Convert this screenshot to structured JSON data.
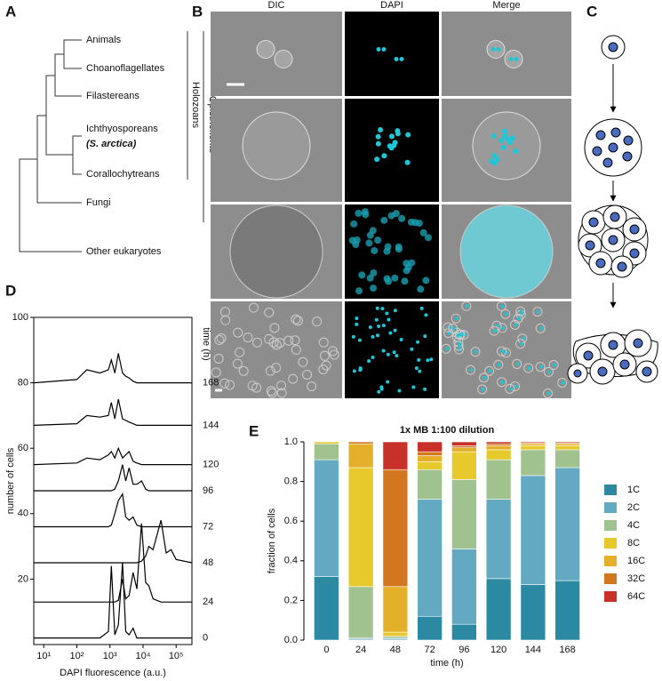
{
  "panel_labels": [
    "A",
    "B",
    "C",
    "D",
    "E"
  ],
  "tree": {
    "taxa": [
      "Animals",
      "Choanoflagellates",
      "Filastereans",
      "Ichthyosporeans",
      "(S. arctica)",
      "Corallochytreans",
      "Fungi",
      "Other eukaryotes"
    ],
    "clades": [
      "Holozoans",
      "Opisthokonts"
    ]
  },
  "microscopy": {
    "columns": [
      "DIC",
      "DAPI",
      "Merge"
    ]
  },
  "chart_data": [
    {
      "type": "line",
      "xlabel": "DAPI fluorescence (a.u.)",
      "ylabel": "number of cells",
      "legend_title": "time (h)",
      "xscale": "log",
      "xlim": [
        5,
        300000
      ],
      "xticks": [
        {
          "value": 10,
          "label": "10¹"
        },
        {
          "value": 100,
          "label": "10²"
        },
        {
          "value": 1000,
          "label": "10³"
        },
        {
          "value": 10000,
          "label": "10⁴"
        },
        {
          "value": 100000,
          "label": "10⁵"
        }
      ],
      "ylim": [
        0,
        100
      ],
      "yticks": [
        20,
        40,
        60,
        80,
        100
      ],
      "x": [
        5,
        100,
        200,
        500,
        900,
        1100,
        1400,
        1800,
        2400,
        3000,
        3800,
        5000,
        6500,
        9000,
        12000,
        15000,
        20000,
        35000,
        50000,
        70000,
        100000,
        300000
      ],
      "series": [
        {
          "name": "0",
          "color": "#000000",
          "values": [
            2,
            2,
            2,
            2,
            4,
            24,
            3,
            6,
            25,
            4,
            3,
            5,
            2,
            2,
            2,
            2,
            2,
            2,
            2,
            2,
            2,
            2
          ]
        },
        {
          "name": "24",
          "color": "#000000",
          "values": [
            13,
            13,
            13,
            13,
            13,
            13,
            13,
            13.5,
            20,
            14,
            15,
            22,
            17,
            37,
            19,
            18,
            14,
            13,
            13,
            13,
            13,
            13
          ]
        },
        {
          "name": "48",
          "color": "#000000",
          "values": [
            25,
            25,
            25,
            25,
            25,
            25,
            25,
            25,
            25,
            25,
            25,
            25,
            25,
            25.5,
            27,
            30,
            29,
            38,
            28,
            29,
            26,
            25
          ]
        },
        {
          "name": "72",
          "color": "#000000",
          "values": [
            36,
            36,
            36,
            36,
            36,
            36.5,
            40,
            44,
            46,
            39,
            38,
            39,
            36.5,
            36,
            36,
            36,
            36,
            36,
            36,
            36,
            36,
            36
          ]
        },
        {
          "name": "96",
          "color": "#000000",
          "values": [
            47,
            47,
            47,
            47,
            47,
            47,
            47.5,
            50,
            55,
            50,
            54,
            49,
            49,
            50,
            47.5,
            47,
            47,
            47,
            47,
            47,
            47,
            47
          ]
        },
        {
          "name": "120",
          "color": "#000000",
          "values": [
            55,
            55.5,
            57,
            56.5,
            58,
            59,
            57,
            60,
            57,
            58,
            59,
            56,
            55.5,
            55,
            55,
            55,
            55,
            55,
            55,
            55,
            55,
            55
          ]
        },
        {
          "name": "144",
          "color": "#000000",
          "values": [
            67,
            67.5,
            70,
            69.5,
            70,
            74,
            69,
            75,
            69,
            68.5,
            68,
            67.5,
            67,
            67,
            67,
            67,
            67,
            67,
            67,
            67,
            67,
            67
          ]
        },
        {
          "name": "168",
          "color": "#000000",
          "values": [
            80,
            81,
            84,
            83,
            84,
            87,
            83,
            89,
            83,
            82,
            81.5,
            80.5,
            80,
            80,
            80,
            80,
            80,
            80,
            80,
            80,
            80,
            80
          ]
        }
      ]
    },
    {
      "type": "stacked_bar",
      "title": "1x MB 1:100 dilution",
      "xlabel": "time (h)",
      "ylabel": "fraction of cells",
      "categories": [
        "0",
        "24",
        "48",
        "72",
        "96",
        "120",
        "144",
        "168"
      ],
      "ylim": [
        0,
        1
      ],
      "yticks": [
        {
          "value": 0,
          "label": "0.0"
        },
        0.2,
        0.4,
        0.6,
        0.8,
        {
          "value": 1,
          "label": "1.0"
        }
      ],
      "legend": "right",
      "series": [
        {
          "name": "1C",
          "color": "#2b8aa2",
          "values": [
            0.32,
            0.005,
            0.005,
            0.12,
            0.08,
            0.31,
            0.28,
            0.3
          ]
        },
        {
          "name": "2C",
          "color": "#62a9c1",
          "values": [
            0.59,
            0.005,
            0.005,
            0.59,
            0.38,
            0.4,
            0.55,
            0.57
          ]
        },
        {
          "name": "4C",
          "color": "#a0c28f",
          "values": [
            0.08,
            0.26,
            0.01,
            0.15,
            0.35,
            0.2,
            0.13,
            0.09
          ]
        },
        {
          "name": "8C",
          "color": "#e8c92c",
          "values": [
            0.01,
            0.6,
            0.02,
            0.04,
            0.14,
            0.05,
            0.02,
            0.02
          ]
        },
        {
          "name": "16C",
          "color": "#e4b02a",
          "values": [
            0,
            0.12,
            0.23,
            0.03,
            0.02,
            0.02,
            0.01,
            0.01
          ]
        },
        {
          "name": "32C",
          "color": "#d2761f",
          "values": [
            0,
            0.01,
            0.59,
            0.02,
            0.01,
            0.01,
            0.005,
            0.005
          ]
        },
        {
          "name": "64C",
          "color": "#c8302a",
          "values": [
            0,
            0,
            0.14,
            0.05,
            0.02,
            0.01,
            0.005,
            0.005
          ]
        }
      ]
    }
  ]
}
